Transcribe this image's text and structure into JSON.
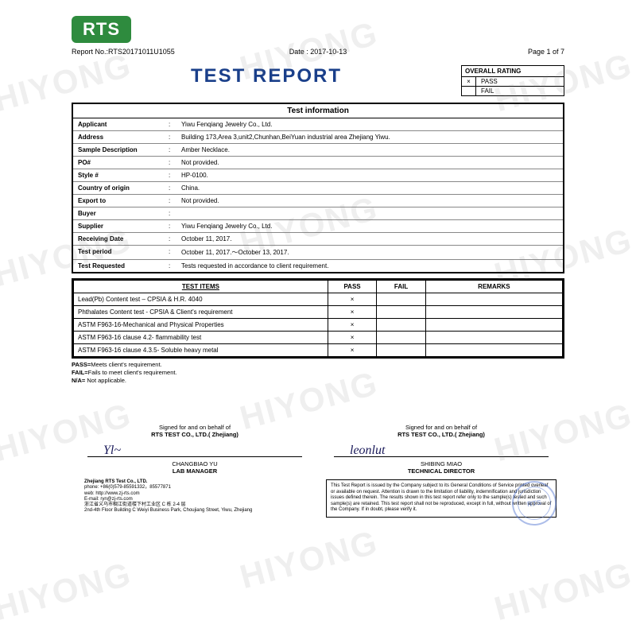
{
  "logo_text": "RTS",
  "meta": {
    "report_no_label": "Report No.:",
    "report_no": "RTS20171011U1055",
    "date_label": "Date :",
    "date": "2017-10-13",
    "page_label": "Page 1 of 7"
  },
  "title": "TEST REPORT",
  "rating": {
    "header": "OVERALL RATING",
    "pass_mark": "×",
    "pass_label": "PASS",
    "fail_mark": "",
    "fail_label": "FAIL"
  },
  "info_header": "Test information",
  "info_rows": [
    {
      "label": "Applicant",
      "value": "Yiwu Fenqiang Jewelry Co., Ltd."
    },
    {
      "label": "Address",
      "value": "Building 173,Area 3,unit2,Chunhan,BeiYuan industrial area Zhejiang Yiwu."
    },
    {
      "label": "Sample Description",
      "value": "Amber Necklace."
    },
    {
      "label": "PO#",
      "value": "Not provided."
    },
    {
      "label": "Style #",
      "value": "HP-0100."
    },
    {
      "label": "Country of origin",
      "value": "China."
    },
    {
      "label": "Export to",
      "value": "Not provided."
    },
    {
      "label": "Buyer",
      "value": ""
    },
    {
      "label": "Supplier",
      "value": "Yiwu Fenqiang Jewelry Co., Ltd."
    },
    {
      "label": "Receiving Date",
      "value": "October 11, 2017."
    },
    {
      "label": "Test period",
      "value": "October 11, 2017.～October 13, 2017."
    },
    {
      "label": "Test Requested",
      "value": "Tests requested in accordance to client requirement."
    }
  ],
  "items_header": {
    "c0": "TEST ITEMS",
    "c1": "PASS",
    "c2": "FAIL",
    "c3": "REMARKS"
  },
  "items": [
    {
      "name": "Lead(Pb) Content test – CPSIA & H.R. 4040",
      "pass": "×",
      "fail": "",
      "remarks": ""
    },
    {
      "name": "Phthalates Content test - CPSIA & Client's requirement",
      "pass": "×",
      "fail": "",
      "remarks": ""
    },
    {
      "name": "ASTM F963-16-Mechanical and Physical Properties",
      "pass": "×",
      "fail": "",
      "remarks": ""
    },
    {
      "name": "ASTM F963-16 clause 4.2- flammability test",
      "pass": "×",
      "fail": "",
      "remarks": ""
    },
    {
      "name": "ASTM F963-16 clause 4.3.5- Soluble heavy metal",
      "pass": "×",
      "fail": "",
      "remarks": ""
    }
  ],
  "legend": {
    "l1a": "PASS=",
    "l1b": "Meets client's requirement.",
    "l2a": "FAIL=",
    "l2b": "Fails to meet client's requirement.",
    "l3a": "N/A=",
    "l3b": " Not applicable."
  },
  "sig": {
    "behalf": "Signed for and on behalf of",
    "company": "RTS TEST CO., LTD.( Zhejiang)",
    "name1": "CHANGBIAO YU",
    "role1": "LAB MANAGER",
    "name2": "SHIBING MIAO",
    "role2": "TECHNICAL DIRECTOR"
  },
  "footer": {
    "co": "Zhejiang RTS Test Co., LTD.",
    "phone": "phone: +86(0)579-85591332，85577871",
    "web": "web: http://www.zj-rts.com",
    "email": "E-mail: ryn@zj-rts.com",
    "addr_cn": "浙江省义乌市稠江街道楼下村工业区 C 栋 2-4 层",
    "addr_en": "2nd-4th Floor Building C Weiyi Business Park, Choujiang Street, Yiwu, Zhejiang",
    "disclaimer": "This Test Report is issued by the Company subject to its General Conditions of Service printed overleaf or available on request. Attention is drawn to the limitation of liability, indemnification and jurisdiction issues defined therein. The results shown in this test report refer only to the sample(s) tested and such sample(s) are retained. This test report shall not be reproduced, except in full, without written approval of the Company. If in doubt, please verify it."
  },
  "watermark": "HIYONG",
  "colors": {
    "logo_bg": "#2e8b3e",
    "title": "#1a3f8a",
    "stamp": "#4a6fd0",
    "wm": "rgba(120,120,120,0.12)"
  }
}
